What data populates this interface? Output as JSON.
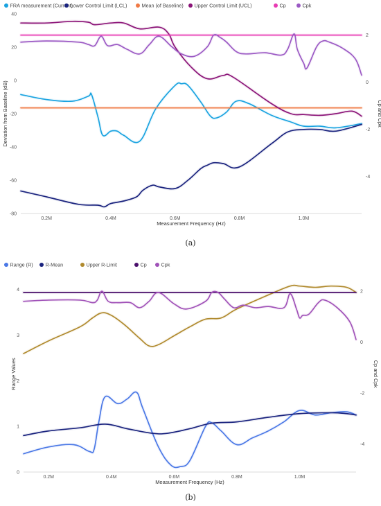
{
  "chart_data": [
    {
      "type": "line",
      "panel_label": "(a)",
      "xlabel": "Measurement Frequency (Hz)",
      "ylabel": "Deviation from Baseline (dB)",
      "y2label": "Cp and Cpk",
      "x_ticks": [
        "0.2M",
        "0.4M",
        "0.6M",
        "0.8M",
        "1.0M"
      ],
      "x_tick_values": [
        200000,
        400000,
        600000,
        800000,
        1000000
      ],
      "y_ticks": [
        "40",
        "20",
        "0",
        "-20",
        "-40",
        "-60",
        "-80"
      ],
      "y_tick_values": [
        40,
        20,
        0,
        -20,
        -40,
        -60,
        -80
      ],
      "y2_ticks": [
        "2",
        "0",
        "-2",
        "-4"
      ],
      "y2_tick_values": [
        2,
        0,
        -2,
        -4
      ],
      "xlim": [
        120000,
        1180000
      ],
      "ylim": [
        -80,
        40
      ],
      "y2lim": [
        -5.57,
        2.9
      ],
      "legend_position": "top-left",
      "grid": false,
      "series": [
        {
          "name": "FRA measurement (Current)",
          "color": "#1aa3e0",
          "axis": "left",
          "x": [
            120000,
            200000,
            280000,
            330000,
            340000,
            360000,
            375000,
            400000,
            420000,
            440000,
            490000,
            540000,
            600000,
            620000,
            640000,
            680000,
            710000,
            730000,
            760000,
            790000,
            830000,
            900000,
            960000,
            1000000,
            1050000,
            1100000,
            1180000
          ],
          "y": [
            -8.5,
            -11.5,
            -12.5,
            -9.5,
            -8.5,
            -22,
            -33,
            -30.5,
            -30.5,
            -33,
            -36.5,
            -17,
            -3,
            -2,
            -3,
            -13,
            -21.5,
            -22.5,
            -19,
            -12.5,
            -14,
            -21,
            -25,
            -27.5,
            -27.5,
            -28.5,
            -26
          ]
        },
        {
          "name": "Lower Control Limit (LCL)",
          "color": "#1a237e",
          "axis": "left",
          "x": [
            120000,
            200000,
            300000,
            360000,
            380000,
            400000,
            440000,
            480000,
            500000,
            530000,
            550000,
            600000,
            640000,
            680000,
            700000,
            720000,
            750000,
            800000,
            900000,
            950000,
            1000000,
            1050000,
            1100000,
            1180000
          ],
          "y": [
            -66.5,
            -70,
            -74.5,
            -75,
            -76,
            -74,
            -72.5,
            -70,
            -66,
            -63,
            -64,
            -65,
            -60,
            -53,
            -51,
            -49.5,
            -50,
            -52,
            -38,
            -31,
            -29.5,
            -29.5,
            -30.5,
            -26.5
          ]
        },
        {
          "name": "Mean (of Baseline)",
          "color": "#f07a45",
          "axis": "left",
          "x": [
            120000,
            1180000
          ],
          "y": [
            -16.5,
            -16.5
          ]
        },
        {
          "name": "Upper Control Limit (UCL)",
          "color": "#8b1478",
          "axis": "left",
          "x": [
            120000,
            200000,
            280000,
            330000,
            350000,
            400000,
            440000,
            490000,
            550000,
            580000,
            600000,
            650000,
            700000,
            750000,
            780000,
            900000,
            960000,
            1000000,
            1050000,
            1100000,
            1150000,
            1180000
          ],
          "y": [
            34.5,
            34.5,
            35.5,
            35,
            33.5,
            34.5,
            34.5,
            31,
            32,
            28,
            20,
            8,
            1,
            3,
            2,
            -14,
            -20,
            -20.5,
            -21,
            -20,
            -18.5,
            -21.5
          ]
        },
        {
          "name": "Cp",
          "color": "#e83bb3",
          "axis": "right",
          "x": [
            120000,
            1180000
          ],
          "y": [
            2.0,
            2.0
          ]
        },
        {
          "name": "Cpk",
          "color": "#9b59c4",
          "axis": "right",
          "x": [
            120000,
            200000,
            300000,
            330000,
            350000,
            370000,
            390000,
            420000,
            450000,
            490000,
            520000,
            550000,
            590000,
            620000,
            660000,
            700000,
            720000,
            740000,
            760000,
            790000,
            820000,
            880000,
            930000,
            950000,
            970000,
            980000,
            1000000,
            1010000,
            1040000,
            1060000,
            1080000,
            1120000,
            1160000,
            1180000
          ],
          "y": [
            1.7,
            1.75,
            1.7,
            1.6,
            1.55,
            1.95,
            1.55,
            1.6,
            1.4,
            1.2,
            1.6,
            1.95,
            1.5,
            1.2,
            1.1,
            1.5,
            2.0,
            1.9,
            1.7,
            1.3,
            1.2,
            1.25,
            1.15,
            1.4,
            2.05,
            1.4,
            0.8,
            0.6,
            1.5,
            1.75,
            1.7,
            1.45,
            1.0,
            0.3
          ]
        }
      ]
    },
    {
      "type": "line",
      "panel_label": "(b)",
      "xlabel": "Measurement Frequency (Hz)",
      "ylabel": "Range Values",
      "y2label": "Cp and Cpk",
      "x_ticks": [
        "0.2M",
        "0.4M",
        "0.6M",
        "0.8M",
        "1.0M"
      ],
      "x_tick_values": [
        200000,
        400000,
        600000,
        800000,
        1000000
      ],
      "y_ticks": [
        "4",
        "3",
        "2",
        "1",
        "0"
      ],
      "y_tick_values": [
        4,
        3,
        2,
        1,
        0
      ],
      "y2_ticks": [
        "2",
        "0",
        "-2",
        "-4"
      ],
      "y2_tick_values": [
        2,
        0,
        -2,
        -4
      ],
      "xlim": [
        120000,
        1180000
      ],
      "ylim": [
        0,
        4.3
      ],
      "y2lim": [
        -5.1,
        2.6
      ],
      "legend_position": "top-left",
      "grid": false,
      "series": [
        {
          "name": "Range (R)",
          "color": "#4a78e6",
          "axis": "left",
          "x": [
            120000,
            200000,
            280000,
            330000,
            345000,
            360000,
            380000,
            420000,
            450000,
            480000,
            500000,
            550000,
            590000,
            620000,
            650000,
            700000,
            720000,
            750000,
            800000,
            850000,
            900000,
            950000,
            1000000,
            1050000,
            1100000,
            1150000,
            1180000
          ],
          "y": [
            0.4,
            0.55,
            0.6,
            0.45,
            0.5,
            1.1,
            1.65,
            1.5,
            1.6,
            1.75,
            1.4,
            0.55,
            0.15,
            0.12,
            0.25,
            1.0,
            1.08,
            0.9,
            0.6,
            0.75,
            0.9,
            1.1,
            1.35,
            1.25,
            1.3,
            1.32,
            1.25
          ]
        },
        {
          "name": "R-Mean",
          "color": "#1a237e",
          "axis": "left",
          "x": [
            120000,
            200000,
            300000,
            380000,
            450000,
            530000,
            580000,
            650000,
            720000,
            800000,
            900000,
            1000000,
            1100000,
            1150000,
            1180000
          ],
          "y": [
            0.8,
            0.9,
            0.97,
            1.05,
            0.95,
            0.85,
            0.85,
            0.95,
            1.07,
            1.1,
            1.2,
            1.28,
            1.3,
            1.28,
            1.25
          ]
        },
        {
          "name": "Upper R-Limit",
          "color": "#b08a2e",
          "axis": "right",
          "x": [
            120000,
            200000,
            300000,
            340000,
            370000,
            400000,
            440000,
            490000,
            520000,
            550000,
            600000,
            650000,
            700000,
            750000,
            800000,
            900000,
            970000,
            1000000,
            1050000,
            1100000,
            1150000,
            1180000
          ],
          "y": [
            -0.45,
            0.05,
            0.6,
            0.95,
            1.15,
            1.05,
            0.7,
            0.15,
            -0.15,
            -0.1,
            0.25,
            0.6,
            0.9,
            0.95,
            1.3,
            1.85,
            2.2,
            2.2,
            2.15,
            2.2,
            2.15,
            1.95
          ]
        },
        {
          "name": "Cp",
          "color": "#4a0f6b",
          "axis": "right",
          "x": [
            120000,
            1180000
          ],
          "y": [
            1.95,
            1.95
          ]
        },
        {
          "name": "Cpk",
          "color": "#a052b8",
          "axis": "right",
          "x": [
            120000,
            200000,
            300000,
            340000,
            355000,
            370000,
            390000,
            420000,
            460000,
            490000,
            520000,
            550000,
            600000,
            640000,
            700000,
            720000,
            740000,
            760000,
            790000,
            820000,
            860000,
            900000,
            950000,
            970000,
            990000,
            1000000,
            1010000,
            1030000,
            1060000,
            1080000,
            1120000,
            1160000,
            1180000
          ],
          "y": [
            1.6,
            1.65,
            1.65,
            1.55,
            1.65,
            2.0,
            1.6,
            1.55,
            1.55,
            1.35,
            1.6,
            1.95,
            1.5,
            1.3,
            1.6,
            1.95,
            1.95,
            1.7,
            1.35,
            1.45,
            1.35,
            1.4,
            1.35,
            1.9,
            1.3,
            0.95,
            1.05,
            1.1,
            1.55,
            1.65,
            1.35,
            0.8,
            0.1
          ]
        }
      ]
    }
  ]
}
